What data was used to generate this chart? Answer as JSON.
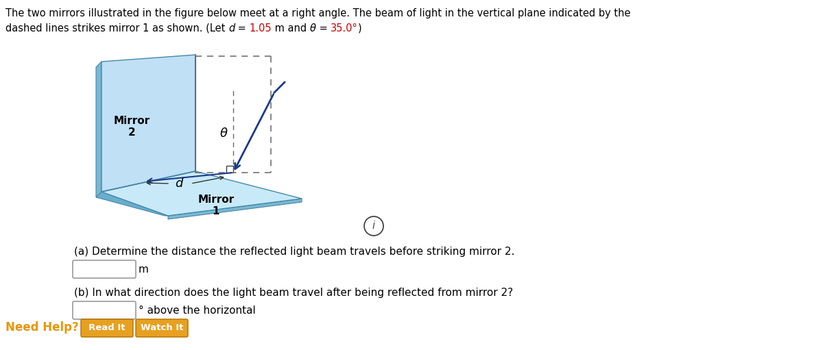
{
  "background_color": "#ffffff",
  "text_color": "#000000",
  "highlight_color": "#cc0000",
  "mirror_face_color": "#b8ddf0",
  "mirror_side_color": "#6aadcc",
  "mirror_bottom_color": "#5599bb",
  "mirror_edge_color": "#4488aa",
  "arrow_color": "#1a3a8a",
  "dashed_color": "#666666",
  "part_a_text": "(a) Determine the distance the reflected light beam travels before striking mirror 2.",
  "part_b_text": "(b) In what direction does the light beam travel after being reflected from mirror 2?",
  "part_b_suffix": "° above the horizontal",
  "unit_a": "m",
  "need_help_color": "#e8960a",
  "need_help_text": "Need Help?",
  "btn_color": "#e8a020",
  "btn_read": "Read It",
  "btn_watch": "Watch It"
}
